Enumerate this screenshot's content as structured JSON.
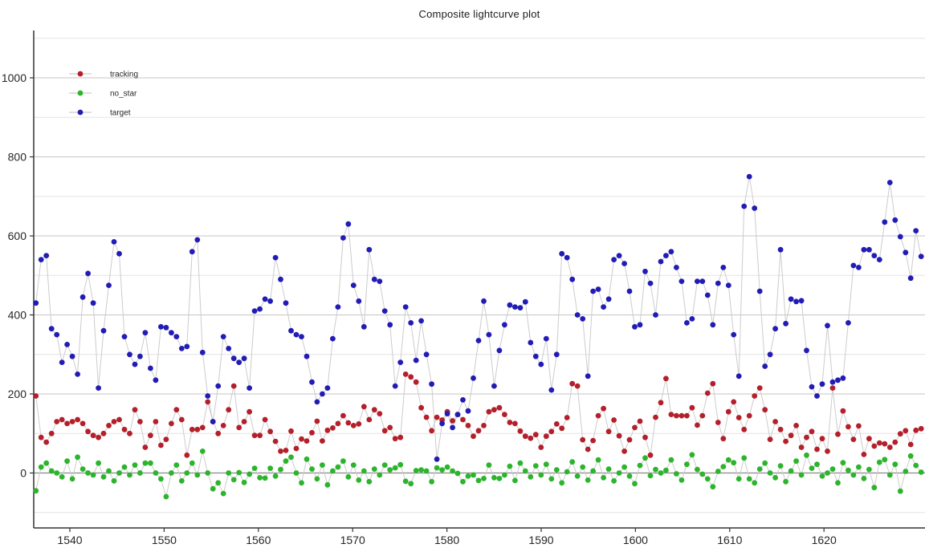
{
  "title": "Composite lightcurve plot",
  "legend": {
    "position": "upper left",
    "items": [
      {
        "label": "tracking",
        "color": "#b41f2a"
      },
      {
        "label": "no_star",
        "color": "#2cb42c"
      },
      {
        "label": "target",
        "color": "#211cb5"
      }
    ]
  },
  "axes": {
    "y_tick_labels": [
      0,
      200,
      400,
      600,
      800,
      1000
    ],
    "x_tick_labels": [
      1540,
      1550,
      1560,
      1570,
      1580,
      1590,
      1600,
      1610,
      1620
    ],
    "grid_step": 100,
    "grid_min": -100,
    "grid_max": 1100
  },
  "colors": {
    "background": "#ffffff",
    "grid_major": "#c6c6c6",
    "grid_minor": "#e3e3e3",
    "zero_line": "#8a8a8a",
    "spine": "#333333",
    "marker_line": "#cccccc"
  },
  "chart_data": {
    "type": "scatter",
    "title": "Composite lightcurve plot",
    "xlabel": "",
    "ylabel": "",
    "grid": true,
    "legend_position": "upper left",
    "xlim": [
      1536.2,
      1630.6
    ],
    "ylim": [
      -135,
      1120
    ],
    "x_start": 1536.4,
    "x_step": 0.5524,
    "n_points": 171,
    "series": [
      {
        "name": "tracking",
        "color": "#b41f2a",
        "values": [
          195,
          90,
          78,
          100,
          130,
          135,
          125,
          130,
          135,
          125,
          105,
          95,
          90,
          100,
          120,
          130,
          135,
          110,
          100,
          160,
          130,
          65,
          95,
          130,
          70,
          85,
          125,
          160,
          135,
          45,
          110,
          110,
          115,
          180,
          130,
          100,
          120,
          160,
          220,
          115,
          130,
          155,
          95,
          95,
          135,
          105,
          80,
          55,
          57,
          106,
          62,
          86,
          81,
          102,
          131,
          81,
          108,
          114,
          125,
          145,
          127,
          120,
          124,
          168,
          135,
          160,
          150,
          107,
          115,
          87,
          90,
          250,
          243,
          230,
          165,
          141,
          107,
          141,
          134,
          155,
          132,
          148,
          135,
          120,
          93,
          107,
          120,
          155,
          160,
          165,
          148,
          128,
          125,
          106,
          93,
          88,
          97,
          65,
          93,
          105,
          124,
          113,
          140,
          226,
          220,
          84,
          60,
          82,
          145,
          163,
          105,
          134,
          94,
          55,
          84,
          115,
          131,
          90,
          45,
          141,
          178,
          239,
          148,
          145,
          145,
          145,
          165,
          121,
          145,
          202,
          226,
          128,
          87,
          155,
          180,
          140,
          110,
          145,
          195,
          215,
          160,
          85,
          130,
          110,
          80,
          95,
          120,
          65,
          90,
          105,
          60,
          87,
          55,
          215,
          98,
          157,
          117,
          85,
          119,
          47,
          87,
          68,
          76,
          74,
          65,
          78,
          99,
          107,
          72,
          108,
          112
        ]
      },
      {
        "name": "no_star",
        "color": "#2cb42c",
        "values": [
          -45,
          15,
          25,
          5,
          0,
          -10,
          30,
          -15,
          40,
          10,
          0,
          -5,
          25,
          -10,
          5,
          -20,
          0,
          15,
          -5,
          20,
          0,
          25,
          25,
          0,
          -15,
          -60,
          0,
          20,
          -20,
          0,
          25,
          -5,
          55,
          0,
          -40,
          -25,
          -52,
          0,
          -17,
          1,
          -24,
          -3,
          12,
          -12,
          -13,
          12,
          -8,
          9,
          30,
          40,
          0,
          -25,
          35,
          10,
          -15,
          20,
          -30,
          5,
          15,
          30,
          -10,
          20,
          -18,
          5,
          -22,
          10,
          -5,
          20,
          8,
          13,
          21,
          -21,
          -27,
          6,
          8,
          5,
          -22,
          13,
          8,
          15,
          5,
          -1,
          -22,
          -8,
          -5,
          -19,
          -14,
          20,
          -12,
          -14,
          -5,
          17,
          -19,
          25,
          5,
          -10,
          18,
          -5,
          22,
          -15,
          8,
          -25,
          3,
          28,
          -8,
          15,
          -18,
          5,
          33,
          -12,
          10,
          -20,
          0,
          15,
          -8,
          -27,
          19,
          38,
          -7,
          9,
          0,
          7,
          33,
          -2,
          -18,
          22,
          46,
          9,
          -3,
          -15,
          -35,
          4,
          16,
          33,
          26,
          -15,
          38,
          -15,
          -25,
          10,
          25,
          0,
          -12,
          18,
          -22,
          5,
          30,
          -5,
          45,
          12,
          22,
          -8,
          0,
          10,
          -25,
          26,
          7,
          -5,
          15,
          -14,
          9,
          -37,
          27,
          34,
          -5,
          22,
          -46,
          4,
          43,
          19,
          2
        ]
      },
      {
        "name": "target",
        "color": "#211cb5",
        "values": [
          430,
          540,
          550,
          365,
          350,
          280,
          325,
          295,
          250,
          445,
          505,
          430,
          215,
          360,
          475,
          585,
          555,
          345,
          300,
          275,
          295,
          355,
          265,
          235,
          370,
          368,
          355,
          345,
          315,
          320,
          560,
          590,
          305,
          195,
          130,
          220,
          345,
          315,
          290,
          280,
          290,
          215,
          410,
          415,
          440,
          435,
          545,
          490,
          430,
          360,
          350,
          345,
          295,
          230,
          180,
          200,
          215,
          340,
          420,
          595,
          630,
          475,
          435,
          370,
          565,
          490,
          485,
          410,
          375,
          220,
          280,
          420,
          380,
          285,
          385,
          300,
          225,
          35,
          125,
          150,
          115,
          148,
          185,
          157,
          240,
          335,
          435,
          350,
          220,
          310,
          375,
          425,
          420,
          418,
          433,
          330,
          295,
          275,
          340,
          210,
          300,
          555,
          545,
          490,
          400,
          390,
          245,
          460,
          465,
          420,
          440,
          540,
          550,
          530,
          460,
          370,
          375,
          510,
          480,
          400,
          535,
          550,
          560,
          520,
          485,
          380,
          390,
          485,
          485,
          450,
          375,
          480,
          520,
          475,
          350,
          245,
          675,
          750,
          670,
          460,
          270,
          300,
          365,
          565,
          378,
          440,
          434,
          436,
          310,
          218,
          195,
          225,
          373,
          230,
          235,
          240,
          380,
          525,
          520,
          565,
          565,
          550,
          540,
          635,
          735,
          640,
          598,
          558,
          493,
          613,
          548
        ]
      }
    ]
  }
}
